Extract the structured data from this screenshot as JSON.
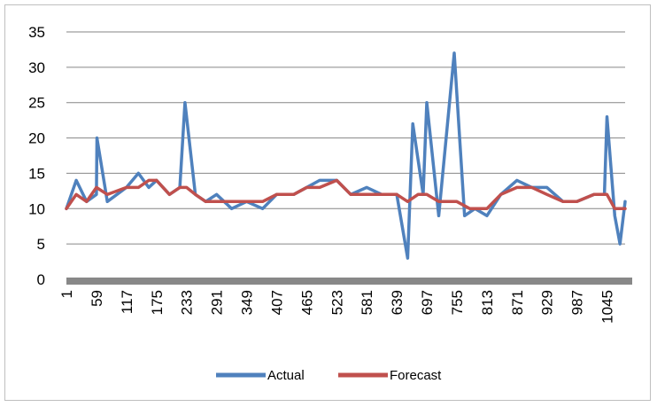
{
  "chart_data": {
    "type": "line",
    "title": "",
    "xlabel": "",
    "ylabel": "",
    "ylim": [
      0,
      35
    ],
    "y_ticks": [
      "0",
      "5",
      "10",
      "15",
      "20",
      "25",
      "30",
      "35"
    ],
    "x_range": [
      1,
      1080
    ],
    "x_ticks": [
      "1",
      "59",
      "117",
      "175",
      "233",
      "291",
      "349",
      "407",
      "465",
      "523",
      "581",
      "639",
      "697",
      "755",
      "813",
      "871",
      "929",
      "987",
      "1045"
    ],
    "grid": "horizontal",
    "legend_position": "bottom",
    "series": [
      {
        "name": "Actual",
        "color": "#4f81bd",
        "points": [
          [
            1,
            10
          ],
          [
            20,
            14
          ],
          [
            40,
            11
          ],
          [
            59,
            12
          ],
          [
            60,
            20
          ],
          [
            80,
            11
          ],
          [
            117,
            13
          ],
          [
            140,
            15
          ],
          [
            160,
            13
          ],
          [
            175,
            14
          ],
          [
            200,
            12
          ],
          [
            220,
            13
          ],
          [
            230,
            25
          ],
          [
            250,
            12
          ],
          [
            270,
            11
          ],
          [
            291,
            12
          ],
          [
            320,
            10
          ],
          [
            349,
            11
          ],
          [
            380,
            10
          ],
          [
            407,
            12
          ],
          [
            440,
            12
          ],
          [
            465,
            13
          ],
          [
            490,
            14
          ],
          [
            523,
            14
          ],
          [
            550,
            12
          ],
          [
            581,
            13
          ],
          [
            610,
            12
          ],
          [
            639,
            12
          ],
          [
            660,
            3
          ],
          [
            670,
            22
          ],
          [
            690,
            12
          ],
          [
            697,
            25
          ],
          [
            720,
            9
          ],
          [
            750,
            32
          ],
          [
            770,
            9
          ],
          [
            790,
            10
          ],
          [
            813,
            9
          ],
          [
            840,
            12
          ],
          [
            871,
            14
          ],
          [
            900,
            13
          ],
          [
            929,
            13
          ],
          [
            960,
            11
          ],
          [
            987,
            11
          ],
          [
            1020,
            12
          ],
          [
            1040,
            12
          ],
          [
            1045,
            23
          ],
          [
            1060,
            9
          ],
          [
            1070,
            5
          ],
          [
            1080,
            11
          ]
        ]
      },
      {
        "name": "Forecast",
        "color": "#c0504d",
        "points": [
          [
            1,
            10
          ],
          [
            20,
            12
          ],
          [
            40,
            11
          ],
          [
            59,
            13
          ],
          [
            80,
            12
          ],
          [
            117,
            13
          ],
          [
            140,
            13
          ],
          [
            160,
            14
          ],
          [
            175,
            14
          ],
          [
            200,
            12
          ],
          [
            220,
            13
          ],
          [
            233,
            13
          ],
          [
            250,
            12
          ],
          [
            270,
            11
          ],
          [
            291,
            11
          ],
          [
            320,
            11
          ],
          [
            349,
            11
          ],
          [
            380,
            11
          ],
          [
            407,
            12
          ],
          [
            440,
            12
          ],
          [
            465,
            13
          ],
          [
            490,
            13
          ],
          [
            523,
            14
          ],
          [
            550,
            12
          ],
          [
            581,
            12
          ],
          [
            610,
            12
          ],
          [
            639,
            12
          ],
          [
            660,
            11
          ],
          [
            680,
            12
          ],
          [
            697,
            12
          ],
          [
            720,
            11
          ],
          [
            755,
            11
          ],
          [
            780,
            10
          ],
          [
            813,
            10
          ],
          [
            840,
            12
          ],
          [
            871,
            13
          ],
          [
            900,
            13
          ],
          [
            929,
            12
          ],
          [
            960,
            11
          ],
          [
            987,
            11
          ],
          [
            1020,
            12
          ],
          [
            1045,
            12
          ],
          [
            1060,
            10
          ],
          [
            1080,
            10
          ]
        ]
      }
    ]
  }
}
